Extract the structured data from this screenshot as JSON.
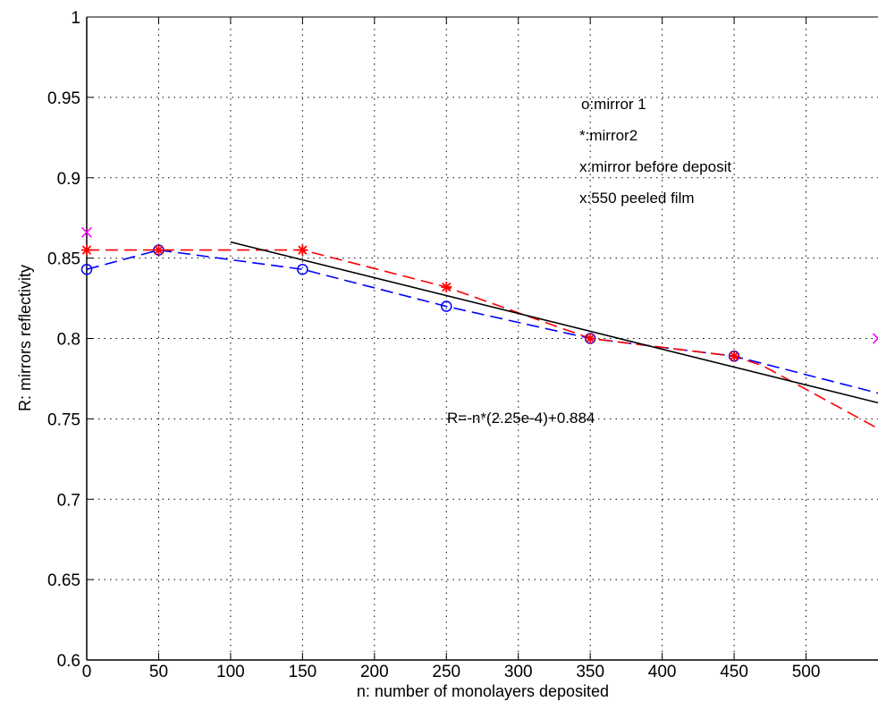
{
  "chart_data": {
    "type": "line",
    "title": "",
    "xlabel": "n: number of monolayers deposited",
    "ylabel": "R: mirrors reflectivity",
    "xlim": [
      0,
      550
    ],
    "ylim": [
      0.6,
      1.0
    ],
    "x_ticks": [
      0,
      50,
      100,
      150,
      200,
      250,
      300,
      350,
      400,
      450,
      500
    ],
    "y_ticks": [
      0.6,
      0.65,
      0.7,
      0.75,
      0.8,
      0.85,
      0.9,
      0.95,
      1.0
    ],
    "x_tick_labels": [
      "0",
      "50",
      "100",
      "150",
      "200",
      "250",
      "300",
      "350",
      "400",
      "450",
      "500"
    ],
    "y_tick_labels": [
      "0.6",
      "0.65",
      "0.7",
      "0.75",
      "0.8",
      "0.85",
      "0.9",
      "0.95",
      "1"
    ],
    "grid": true,
    "legend_text": [
      "o:mirror 1",
      "*:mirror2",
      "x:mirror before deposit",
      "x:550 peeled film"
    ],
    "annotation": "R=-n*(2.25e-4)+0.884",
    "series": [
      {
        "name": "mirror 1",
        "color": "#0000ff",
        "line_style": "dashed",
        "marker": "circle",
        "x": [
          0,
          50,
          150,
          250,
          350,
          450
        ],
        "y": [
          0.843,
          0.855,
          0.843,
          0.82,
          0.8,
          0.789
        ],
        "curve_extension": {
          "x": [
            450,
            550
          ],
          "y": [
            0.789,
            0.766
          ]
        }
      },
      {
        "name": "mirror2",
        "color": "#ff0000",
        "line_style": "dashed",
        "marker": "star",
        "x": [
          0,
          50,
          150,
          250,
          350,
          450
        ],
        "y": [
          0.855,
          0.855,
          0.855,
          0.832,
          0.8,
          0.789
        ],
        "curve_extension": {
          "x": [
            450,
            470,
            550
          ],
          "y": [
            0.789,
            0.783,
            0.744
          ]
        }
      },
      {
        "name": "mirror before deposit",
        "color": "#ff00ff",
        "line_style": "none",
        "marker": "x",
        "x": [
          0
        ],
        "y": [
          0.866
        ]
      },
      {
        "name": "550 peeled film",
        "color": "#ff00ff",
        "line_style": "none",
        "marker": "x",
        "x": [
          550
        ],
        "y": [
          0.8
        ]
      },
      {
        "name": "linear fit",
        "color": "#000000",
        "line_style": "solid",
        "marker": "none",
        "x": [
          100,
          550
        ],
        "y": [
          0.86,
          0.76
        ]
      }
    ]
  }
}
